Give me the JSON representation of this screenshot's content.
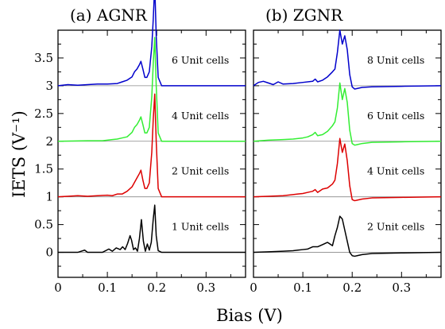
{
  "chart_data": [
    {
      "type": "line",
      "title": "(a) AGNR",
      "xlabel": "Bias (V)",
      "ylabel": "IETS (V⁻¹)",
      "xlim": [
        0,
        0.38
      ],
      "ylim": [
        -0.45,
        4.0
      ],
      "xticks": [
        "0",
        "0.1",
        "0.2",
        "0.3"
      ],
      "yticks": [
        "0",
        "0.5",
        "1",
        "1.5",
        "2",
        "2.5",
        "3",
        "3.5"
      ],
      "grid": false,
      "series": [
        {
          "name": "1 Unit cells",
          "color": "#000000",
          "offset": 0,
          "x": [
            0.0,
            0.04,
            0.054,
            0.06,
            0.09,
            0.103,
            0.11,
            0.118,
            0.126,
            0.131,
            0.136,
            0.141,
            0.146,
            0.149,
            0.153,
            0.157,
            0.161,
            0.165,
            0.169,
            0.173,
            0.177,
            0.181,
            0.185,
            0.189,
            0.193,
            0.196,
            0.199,
            0.203,
            0.21,
            0.23,
            0.38
          ],
          "y": [
            0.0,
            0.0,
            0.04,
            0.0,
            0.0,
            0.06,
            0.02,
            0.08,
            0.05,
            0.1,
            0.05,
            0.16,
            0.3,
            0.22,
            0.05,
            0.08,
            0.02,
            0.25,
            0.59,
            0.2,
            0.02,
            0.15,
            0.04,
            0.18,
            0.6,
            0.85,
            0.3,
            0.03,
            0.0,
            0.0,
            0.0
          ]
        },
        {
          "name": "2 Unit cells",
          "color": "#dd0000",
          "offset": 1,
          "x": [
            0.0,
            0.02,
            0.04,
            0.06,
            0.08,
            0.1,
            0.11,
            0.12,
            0.13,
            0.14,
            0.15,
            0.155,
            0.16,
            0.165,
            0.168,
            0.172,
            0.176,
            0.18,
            0.185,
            0.19,
            0.193,
            0.196,
            0.199,
            0.203,
            0.21,
            0.23,
            0.38
          ],
          "y": [
            0.0,
            0.01,
            0.02,
            0.01,
            0.02,
            0.03,
            0.02,
            0.05,
            0.05,
            0.1,
            0.18,
            0.26,
            0.34,
            0.42,
            0.48,
            0.3,
            0.15,
            0.15,
            0.25,
            0.8,
            1.4,
            1.85,
            1.0,
            0.15,
            0.0,
            0.0,
            0.0
          ]
        },
        {
          "name": "4 Unit cells",
          "color": "#33ee33",
          "offset": 2,
          "x": [
            0.0,
            0.06,
            0.09,
            0.11,
            0.12,
            0.13,
            0.14,
            0.15,
            0.155,
            0.16,
            0.165,
            0.168,
            0.172,
            0.176,
            0.18,
            0.185,
            0.19,
            0.193,
            0.196,
            0.199,
            0.203,
            0.21,
            0.23,
            0.38
          ],
          "y": [
            0.0,
            0.01,
            0.01,
            0.03,
            0.04,
            0.06,
            0.08,
            0.16,
            0.25,
            0.3,
            0.38,
            0.44,
            0.3,
            0.15,
            0.15,
            0.25,
            0.8,
            1.4,
            1.87,
            1.0,
            0.15,
            0.0,
            0.0,
            0.0
          ]
        },
        {
          "name": "6 Unit cells",
          "color": "#0000cc",
          "offset": 3,
          "x": [
            0.0,
            0.02,
            0.04,
            0.06,
            0.08,
            0.1,
            0.12,
            0.13,
            0.14,
            0.15,
            0.155,
            0.16,
            0.165,
            0.168,
            0.172,
            0.176,
            0.18,
            0.185,
            0.19,
            0.193,
            0.196,
            0.199,
            0.203,
            0.21,
            0.23,
            0.38
          ],
          "y": [
            0.0,
            0.02,
            0.01,
            0.02,
            0.03,
            0.03,
            0.04,
            0.07,
            0.1,
            0.16,
            0.25,
            0.3,
            0.38,
            0.44,
            0.3,
            0.15,
            0.15,
            0.25,
            0.7,
            1.2,
            1.82,
            0.9,
            0.15,
            0.0,
            0.0,
            0.0
          ]
        }
      ]
    },
    {
      "type": "line",
      "title": "(b) ZGNR",
      "xlabel": "Bias (V)",
      "xlim": [
        0,
        0.38
      ],
      "ylim": [
        -0.45,
        4.0
      ],
      "xticks": [
        "0",
        "0.1",
        "0.2",
        "0.3"
      ],
      "grid": false,
      "series": [
        {
          "name": "2 Unit cells",
          "color": "#000000",
          "offset": 0,
          "x": [
            0.0,
            0.03,
            0.06,
            0.08,
            0.09,
            0.1,
            0.11,
            0.12,
            0.13,
            0.14,
            0.15,
            0.16,
            0.165,
            0.17,
            0.175,
            0.18,
            0.185,
            0.19,
            0.195,
            0.2,
            0.205,
            0.21,
            0.22,
            0.24,
            0.3,
            0.38
          ],
          "y": [
            0.0,
            0.01,
            0.02,
            0.03,
            0.04,
            0.05,
            0.06,
            0.1,
            0.1,
            0.14,
            0.18,
            0.12,
            0.3,
            0.45,
            0.65,
            0.6,
            0.4,
            0.2,
            0.0,
            -0.06,
            -0.07,
            -0.06,
            -0.04,
            -0.02,
            -0.01,
            0.0
          ]
        },
        {
          "name": "4 Unit cells",
          "color": "#dd0000",
          "offset": 1,
          "x": [
            0.0,
            0.03,
            0.06,
            0.08,
            0.09,
            0.1,
            0.11,
            0.12,
            0.125,
            0.13,
            0.14,
            0.15,
            0.16,
            0.165,
            0.17,
            0.175,
            0.18,
            0.185,
            0.19,
            0.195,
            0.2,
            0.205,
            0.21,
            0.22,
            0.24,
            0.3,
            0.38
          ],
          "y": [
            0.0,
            0.01,
            0.02,
            0.04,
            0.05,
            0.06,
            0.08,
            0.1,
            0.13,
            0.08,
            0.14,
            0.16,
            0.23,
            0.3,
            0.6,
            1.05,
            0.8,
            0.95,
            0.65,
            0.2,
            -0.05,
            -0.07,
            -0.06,
            -0.04,
            -0.02,
            -0.01,
            0.0
          ]
        },
        {
          "name": "6 Unit cells",
          "color": "#33ee33",
          "offset": 2,
          "x": [
            0.0,
            0.03,
            0.06,
            0.08,
            0.1,
            0.11,
            0.12,
            0.125,
            0.13,
            0.14,
            0.15,
            0.16,
            0.165,
            0.17,
            0.175,
            0.18,
            0.185,
            0.19,
            0.195,
            0.2,
            0.205,
            0.21,
            0.22,
            0.24,
            0.3,
            0.38
          ],
          "y": [
            0.0,
            0.02,
            0.03,
            0.04,
            0.06,
            0.08,
            0.12,
            0.16,
            0.1,
            0.12,
            0.18,
            0.28,
            0.35,
            0.6,
            1.05,
            0.75,
            0.95,
            0.7,
            0.2,
            -0.04,
            -0.07,
            -0.06,
            -0.04,
            -0.02,
            -0.01,
            0.0
          ]
        },
        {
          "name": "8 Unit cells",
          "color": "#0000cc",
          "offset": 3,
          "x": [
            0.0,
            0.01,
            0.02,
            0.03,
            0.04,
            0.05,
            0.06,
            0.08,
            0.1,
            0.12,
            0.125,
            0.13,
            0.14,
            0.15,
            0.16,
            0.165,
            0.17,
            0.175,
            0.18,
            0.185,
            0.19,
            0.195,
            0.2,
            0.205,
            0.21,
            0.22,
            0.24,
            0.3,
            0.38
          ],
          "y": [
            0.0,
            0.06,
            0.08,
            0.05,
            0.02,
            0.07,
            0.03,
            0.04,
            0.06,
            0.08,
            0.12,
            0.07,
            0.1,
            0.16,
            0.25,
            0.3,
            0.6,
            1.0,
            0.75,
            0.9,
            0.65,
            0.2,
            -0.02,
            -0.06,
            -0.05,
            -0.03,
            -0.02,
            -0.01,
            0.0
          ]
        }
      ]
    }
  ]
}
